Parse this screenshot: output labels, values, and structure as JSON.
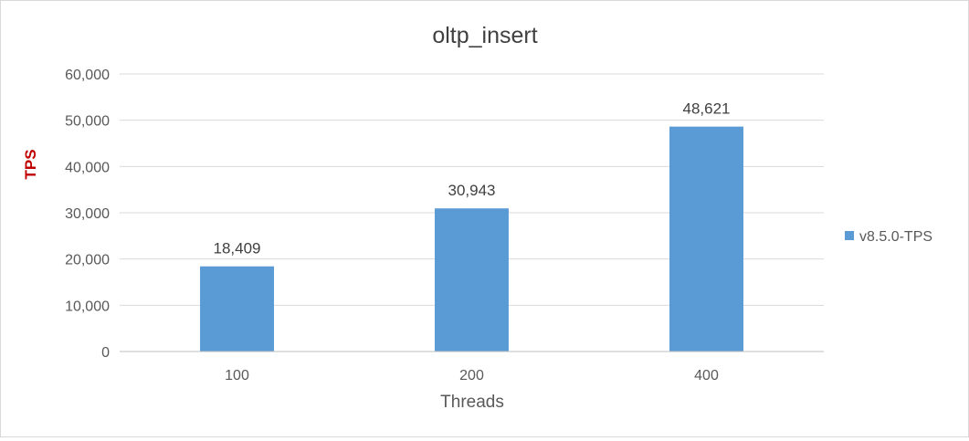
{
  "chart_data": {
    "type": "bar",
    "title": "oltp_insert",
    "xlabel": "Threads",
    "ylabel": "TPS",
    "categories": [
      "100",
      "200",
      "400"
    ],
    "series": [
      {
        "name": "v8.5.0-TPS",
        "values": [
          18409,
          30943,
          48621
        ],
        "data_labels": [
          "18,409",
          "30,943",
          "48,621"
        ],
        "color": "#5b9bd5"
      }
    ],
    "ylim": [
      0,
      60000
    ],
    "y_ticks": [
      0,
      10000,
      20000,
      30000,
      40000,
      50000,
      60000
    ],
    "y_tick_labels": [
      "0",
      "10,000",
      "20,000",
      "30,000",
      "40,000",
      "50,000",
      "60,000"
    ],
    "grid": true,
    "legend_position": "right",
    "colors": {
      "title": "#404040",
      "ylabel": "#c00000",
      "axis_text": "#595959",
      "gridline": "#d9d9d9",
      "axis_line": "#bfbfbf"
    }
  }
}
